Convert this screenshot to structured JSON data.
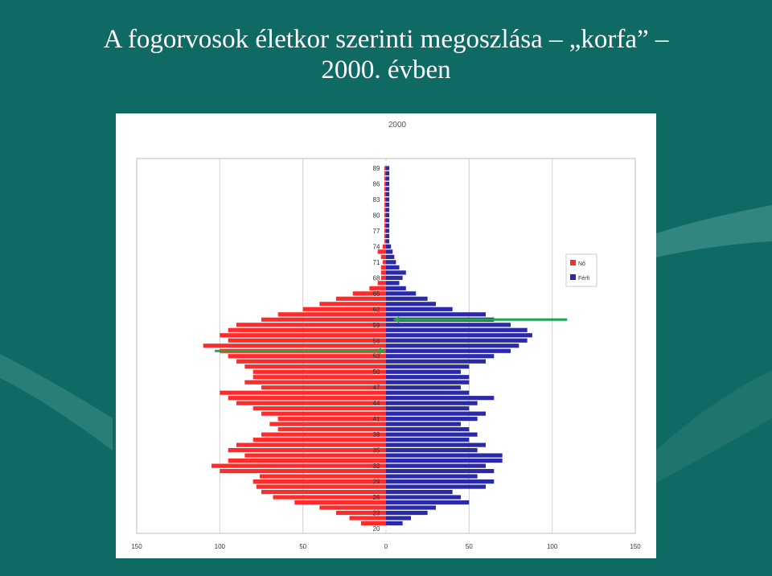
{
  "slide": {
    "title_line1": "A fogorvosok életkor szerinti megoszlása – „korfa” –",
    "title_line2": "2000. évben",
    "background_color": "#0e6a63"
  },
  "chart_data": {
    "type": "bar",
    "orientation": "horizontal",
    "layout": "population-pyramid",
    "title": "2000",
    "xlabel": "",
    "ylabel": "",
    "xlim": [
      -150,
      150
    ],
    "x_ticks": [
      {
        "value": -150,
        "label": "150"
      },
      {
        "value": -100,
        "label": "100"
      },
      {
        "value": -50,
        "label": "50"
      },
      {
        "value": 0,
        "label": "0"
      },
      {
        "value": 50,
        "label": "50"
      },
      {
        "value": 100,
        "label": "100"
      },
      {
        "value": 150,
        "label": "150"
      }
    ],
    "grid": true,
    "ages": [
      20,
      21,
      22,
      23,
      24,
      25,
      26,
      27,
      28,
      29,
      30,
      31,
      32,
      33,
      34,
      35,
      36,
      37,
      38,
      39,
      40,
      41,
      42,
      43,
      44,
      45,
      46,
      47,
      48,
      49,
      50,
      51,
      52,
      53,
      54,
      55,
      56,
      57,
      58,
      59,
      60,
      61,
      62,
      63,
      64,
      65,
      66,
      67,
      68,
      69,
      70,
      71,
      72,
      73,
      74,
      75,
      76,
      77,
      78,
      79,
      80,
      81,
      82,
      83,
      84,
      85,
      86,
      87,
      88,
      89
    ],
    "age_tick_labels": [
      "20",
      "23",
      "26",
      "29",
      "32",
      "35",
      "38",
      "41",
      "44",
      "47",
      "50",
      "53",
      "56",
      "59",
      "62",
      "65",
      "68",
      "71",
      "74",
      "77",
      "80",
      "83",
      "86",
      "89"
    ],
    "legend": {
      "position": "right",
      "entries": [
        "Nő",
        "Férfi"
      ]
    },
    "series": [
      {
        "name": "Nő",
        "color": "#ff2a2a",
        "values": [
          0,
          15,
          22,
          30,
          40,
          55,
          68,
          75,
          78,
          80,
          76,
          100,
          105,
          95,
          85,
          95,
          90,
          80,
          75,
          65,
          70,
          65,
          75,
          80,
          90,
          95,
          100,
          75,
          85,
          80,
          80,
          85,
          90,
          95,
          100,
          110,
          95,
          100,
          95,
          90,
          75,
          65,
          50,
          40,
          30,
          20,
          10,
          5,
          3,
          3,
          3,
          2,
          3,
          5,
          2,
          1,
          1,
          1,
          1,
          1,
          1,
          1,
          1,
          1,
          1,
          1,
          1,
          1,
          1,
          1
        ]
      },
      {
        "name": "Férfi",
        "color": "#2a2aa8",
        "values": [
          0,
          10,
          15,
          25,
          30,
          50,
          45,
          40,
          60,
          65,
          55,
          65,
          60,
          70,
          70,
          55,
          60,
          50,
          55,
          50,
          45,
          55,
          60,
          50,
          55,
          65,
          50,
          45,
          50,
          50,
          45,
          50,
          60,
          65,
          75,
          80,
          85,
          88,
          85,
          75,
          65,
          60,
          40,
          30,
          25,
          18,
          12,
          8,
          10,
          12,
          8,
          6,
          5,
          4,
          3,
          2,
          2,
          2,
          2,
          2,
          2,
          2,
          2,
          2,
          2,
          2,
          2,
          2,
          2,
          2
        ]
      }
    ],
    "annotations": [
      {
        "type": "arrow",
        "color": "#1fa64a",
        "y_age": 54,
        "x_from": -103,
        "x_to": -1
      },
      {
        "type": "arrow",
        "color": "#1fa64a",
        "y_age": 60,
        "x_from": 109,
        "x_to": 5
      }
    ]
  }
}
